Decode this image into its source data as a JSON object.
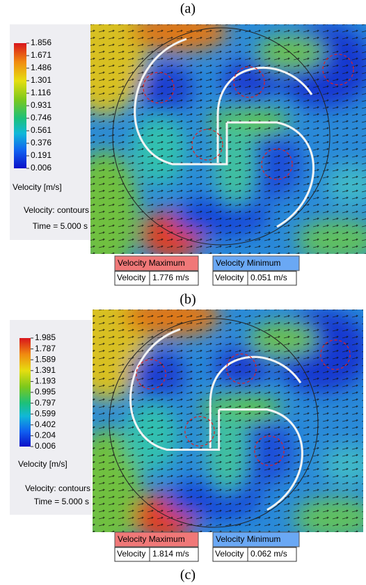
{
  "panels": [
    {
      "label": "(a)",
      "colorbar_ticks": [
        "1.856",
        "1.671",
        "1.486",
        "1.301",
        "1.116",
        "0.931",
        "0.746",
        "0.561",
        "0.376",
        "0.191",
        "0.006"
      ],
      "quantity": "Velocity [m/s]",
      "plot_kind": "Velocity: contours",
      "time": "Time = 5.000 s",
      "max_table": {
        "header": "Velocity Maximum",
        "name": "Velocity",
        "value": "1.776 m/s"
      },
      "min_table": {
        "header": "Velocity Minimum",
        "name": "Velocity",
        "value": "0.051 m/s"
      }
    },
    {
      "label": "(b)",
      "colorbar_ticks": [
        "1.985",
        "1.787",
        "1.589",
        "1.391",
        "1.193",
        "0.995",
        "0.797",
        "0.599",
        "0.402",
        "0.204",
        "0.006"
      ],
      "quantity": "Velocity [m/s]",
      "plot_kind": "Velocity: contours",
      "time": "Time = 5.000 s",
      "max_table": {
        "header": "Velocity Maximum",
        "name": "Velocity",
        "value": "1.814 m/s"
      },
      "min_table": {
        "header": "Velocity Minimum",
        "name": "Velocity",
        "value": "0.062 m/s"
      }
    }
  ],
  "footer_label": "(c)"
}
